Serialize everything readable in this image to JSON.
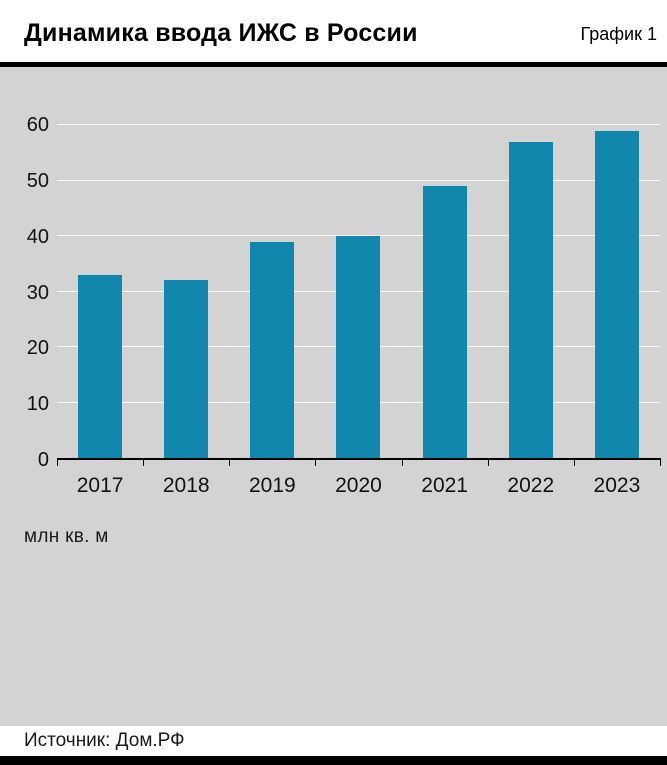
{
  "header": {
    "title": "Динамика ввода ИЖС в России",
    "chart_label": "График 1"
  },
  "chart_data": {
    "type": "bar",
    "title": "Динамика ввода ИЖС в России",
    "categories": [
      "2017",
      "2018",
      "2019",
      "2020",
      "2021",
      "2022",
      "2023"
    ],
    "values": [
      33,
      32,
      39,
      40,
      49,
      57,
      59
    ],
    "xlabel": "",
    "ylabel": "",
    "unit": "млн кв. м",
    "ylim": [
      0,
      60
    ],
    "ytick_step": 10,
    "grid": true,
    "legend": "none",
    "bar_color": "#1187ae",
    "panel_background": "#d3d3d3",
    "gridline_color": "#fafafa"
  },
  "footer": {
    "source": "Источник: Дом.РФ"
  }
}
